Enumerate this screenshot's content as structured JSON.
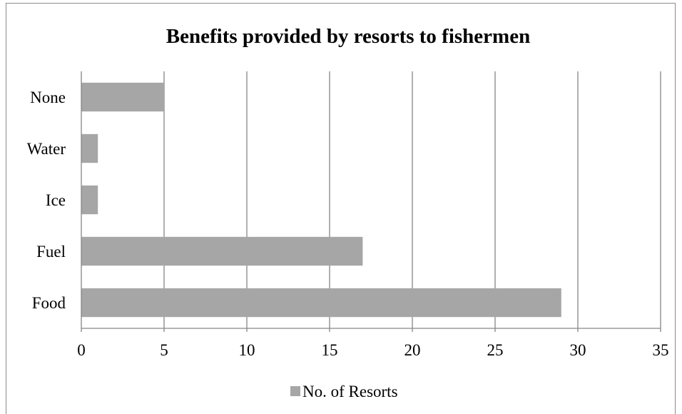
{
  "chart_data": {
    "type": "bar",
    "orientation": "horizontal",
    "title": "Benefits provided by resorts to fishermen",
    "categories": [
      "Food",
      "Fuel",
      "Ice",
      "Water",
      "None"
    ],
    "series": [
      {
        "name": "No. of Resorts",
        "values": [
          29,
          17,
          1,
          1,
          5
        ],
        "color": "#a6a6a6"
      }
    ],
    "xlim": [
      0,
      35
    ],
    "xticks": [
      "0",
      "5",
      "10",
      "15",
      "20",
      "25",
      "30",
      "35"
    ],
    "grid": "vertical",
    "legend": "bottom"
  },
  "colors": {
    "bar": "#a6a6a6",
    "grid": "#868686",
    "axis": "#868686"
  }
}
